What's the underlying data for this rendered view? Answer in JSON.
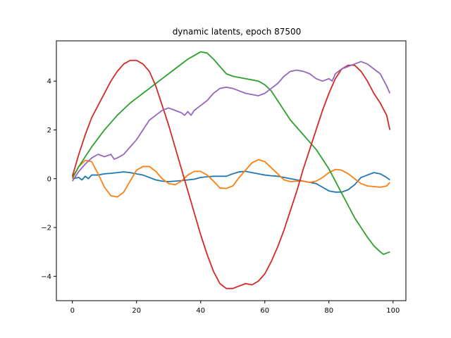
{
  "chart_data": {
    "type": "line",
    "title": "dynamic latents, epoch 87500",
    "xlabel": "",
    "ylabel": "",
    "xlim": [
      -5,
      104
    ],
    "ylim": [
      -5.0,
      5.65
    ],
    "xticks": [
      0,
      20,
      40,
      60,
      80,
      100
    ],
    "yticks": [
      -4,
      -2,
      0,
      2,
      4
    ],
    "grid": false,
    "legend": "none",
    "series": [
      {
        "color": "#1f77b4",
        "x": [
          0,
          2,
          3,
          4,
          5,
          6,
          8,
          10,
          12,
          14,
          16,
          18,
          20,
          22,
          24,
          26,
          28,
          30,
          32,
          34,
          36,
          38,
          40,
          42,
          44,
          46,
          48,
          50,
          52,
          54,
          56,
          58,
          60,
          62,
          64,
          66,
          68,
          70,
          72,
          74,
          76,
          78,
          80,
          82,
          84,
          86,
          88,
          90,
          92,
          94,
          96,
          98,
          99
        ],
        "y": [
          0.0,
          0.05,
          -0.05,
          0.1,
          0.0,
          0.15,
          0.15,
          0.2,
          0.22,
          0.25,
          0.28,
          0.25,
          0.2,
          0.15,
          0.05,
          -0.05,
          -0.1,
          -0.12,
          -0.1,
          -0.08,
          -0.05,
          -0.02,
          0.05,
          0.08,
          0.1,
          0.1,
          0.1,
          0.2,
          0.28,
          0.3,
          0.25,
          0.2,
          0.15,
          0.12,
          0.1,
          0.05,
          0.0,
          -0.05,
          -0.1,
          -0.15,
          -0.2,
          -0.35,
          -0.5,
          -0.55,
          -0.55,
          -0.45,
          -0.25,
          0.05,
          0.15,
          0.25,
          0.2,
          0.05,
          -0.05
        ]
      },
      {
        "color": "#ff7f0e",
        "x": [
          0,
          2,
          4,
          6,
          8,
          10,
          12,
          14,
          16,
          18,
          20,
          22,
          24,
          26,
          28,
          30,
          32,
          34,
          36,
          38,
          40,
          42,
          44,
          46,
          48,
          50,
          52,
          54,
          56,
          58,
          60,
          62,
          64,
          66,
          68,
          70,
          72,
          74,
          76,
          78,
          80,
          82,
          84,
          86,
          88,
          90,
          92,
          94,
          96,
          98,
          99
        ],
        "y": [
          0.0,
          0.5,
          0.75,
          0.7,
          0.2,
          -0.35,
          -0.7,
          -0.75,
          -0.55,
          -0.1,
          0.35,
          0.5,
          0.5,
          0.3,
          0.0,
          -0.2,
          -0.25,
          -0.1,
          0.15,
          0.3,
          0.3,
          0.15,
          -0.1,
          -0.38,
          -0.4,
          -0.3,
          0.05,
          0.35,
          0.65,
          0.78,
          0.7,
          0.45,
          0.2,
          -0.05,
          -0.12,
          -0.1,
          -0.1,
          -0.15,
          -0.1,
          0.05,
          0.25,
          0.38,
          0.35,
          0.2,
          0.0,
          -0.2,
          -0.3,
          -0.32,
          -0.35,
          -0.3,
          -0.15
        ]
      },
      {
        "color": "#2ca02c",
        "x": [
          0,
          2,
          4,
          6,
          8,
          10,
          12,
          14,
          16,
          18,
          20,
          22,
          24,
          26,
          28,
          30,
          32,
          34,
          36,
          38,
          40,
          42,
          44,
          46,
          48,
          50,
          52,
          54,
          56,
          58,
          60,
          62,
          64,
          66,
          68,
          70,
          72,
          74,
          76,
          78,
          80,
          82,
          84,
          86,
          88,
          90,
          92,
          94,
          96,
          97,
          98,
          99
        ],
        "y": [
          0.05,
          0.5,
          0.9,
          1.3,
          1.65,
          2.0,
          2.3,
          2.6,
          2.85,
          3.1,
          3.3,
          3.5,
          3.7,
          3.9,
          4.1,
          4.3,
          4.5,
          4.7,
          4.9,
          5.05,
          5.2,
          5.15,
          4.9,
          4.6,
          4.3,
          4.2,
          4.15,
          4.1,
          4.05,
          4.0,
          3.85,
          3.6,
          3.2,
          2.8,
          2.4,
          2.1,
          1.8,
          1.5,
          1.2,
          0.8,
          0.4,
          -0.1,
          -0.6,
          -1.1,
          -1.6,
          -2.0,
          -2.4,
          -2.75,
          -3.0,
          -3.1,
          -3.05,
          -3.0
        ]
      },
      {
        "color": "#d62728",
        "x": [
          0,
          2,
          4,
          6,
          8,
          10,
          12,
          14,
          16,
          18,
          20,
          22,
          24,
          26,
          28,
          30,
          32,
          34,
          36,
          38,
          40,
          42,
          44,
          46,
          48,
          50,
          52,
          54,
          56,
          58,
          60,
          62,
          64,
          66,
          68,
          70,
          72,
          74,
          76,
          78,
          80,
          82,
          84,
          86,
          88,
          90,
          92,
          94,
          96,
          98,
          99
        ],
        "y": [
          0.1,
          1.0,
          1.8,
          2.5,
          3.0,
          3.5,
          4.0,
          4.4,
          4.7,
          4.85,
          4.85,
          4.7,
          4.4,
          3.8,
          3.0,
          2.2,
          1.3,
          0.4,
          -0.5,
          -1.4,
          -2.3,
          -3.1,
          -3.8,
          -4.3,
          -4.5,
          -4.5,
          -4.4,
          -4.3,
          -4.35,
          -4.2,
          -3.9,
          -3.4,
          -2.8,
          -2.1,
          -1.3,
          -0.5,
          0.4,
          1.2,
          2.0,
          2.8,
          3.5,
          4.1,
          4.5,
          4.65,
          4.65,
          4.4,
          4.0,
          3.5,
          3.1,
          2.6,
          2.0
        ]
      },
      {
        "color": "#9467bd",
        "x": [
          0,
          2,
          4,
          6,
          8,
          10,
          12,
          13,
          14,
          16,
          18,
          20,
          22,
          24,
          26,
          28,
          30,
          32,
          34,
          35,
          36,
          37,
          38,
          40,
          42,
          44,
          46,
          48,
          50,
          52,
          54,
          56,
          58,
          60,
          62,
          64,
          66,
          68,
          70,
          72,
          74,
          76,
          78,
          80,
          81,
          82,
          84,
          86,
          88,
          90,
          92,
          94,
          96,
          98,
          99
        ],
        "y": [
          -0.1,
          0.3,
          0.6,
          0.85,
          1.0,
          0.9,
          1.0,
          0.8,
          0.85,
          1.0,
          1.3,
          1.6,
          2.0,
          2.4,
          2.6,
          2.8,
          2.9,
          2.8,
          2.7,
          2.6,
          2.75,
          2.6,
          2.8,
          3.0,
          3.2,
          3.5,
          3.7,
          3.75,
          3.7,
          3.6,
          3.5,
          3.45,
          3.4,
          3.5,
          3.7,
          3.9,
          4.2,
          4.4,
          4.45,
          4.4,
          4.3,
          4.1,
          4.0,
          4.1,
          4.0,
          4.3,
          4.5,
          4.6,
          4.7,
          4.8,
          4.7,
          4.5,
          4.3,
          3.8,
          3.5
        ]
      }
    ]
  }
}
